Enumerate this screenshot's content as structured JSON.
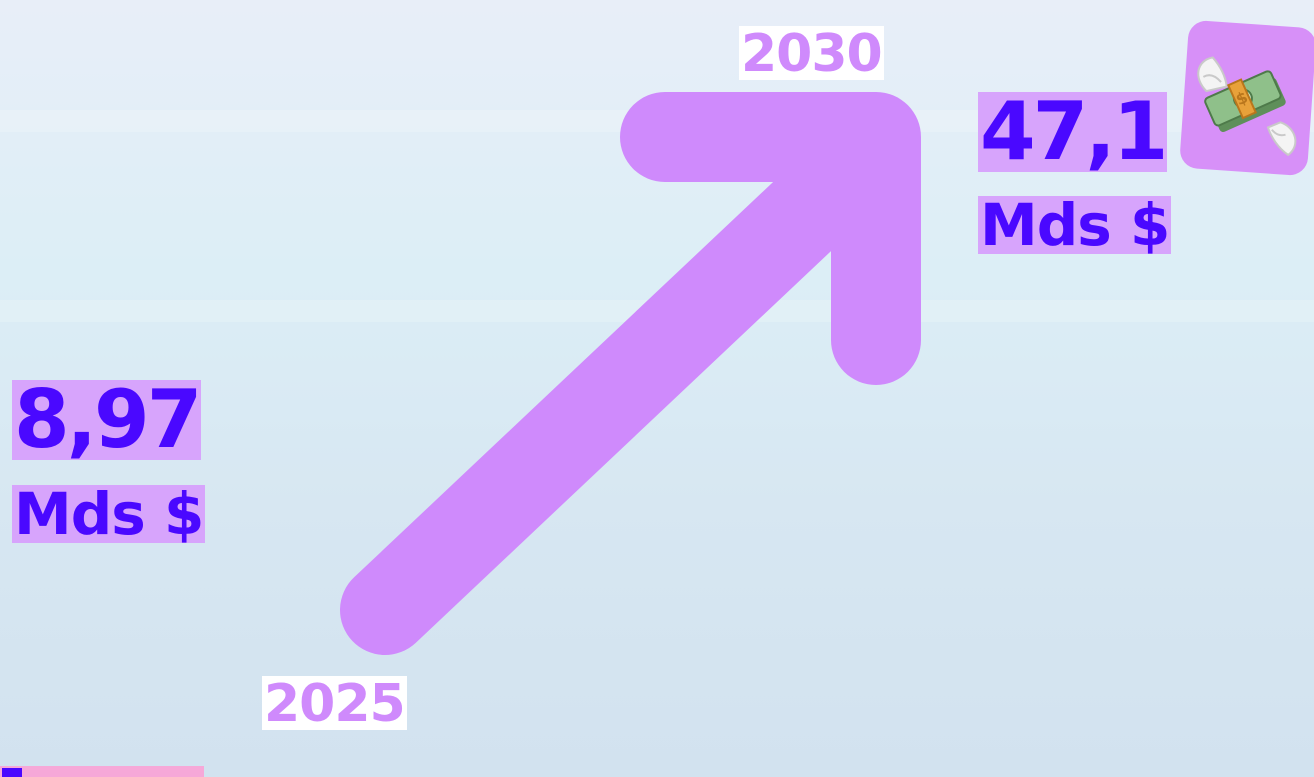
{
  "start": {
    "year": "2025",
    "value": "8,97",
    "unit": "Mds $"
  },
  "end": {
    "year": "2030",
    "value": "47,1",
    "unit": "Mds $"
  },
  "icon": "money-with-wings-icon",
  "colors": {
    "arrow": "#cf8afc",
    "value_text": "#4a08ff",
    "highlight": "#d7a4fc",
    "year_text": "#cf8afc",
    "tile": "#d790f8",
    "bottom_partial": "#f6a8d8"
  }
}
